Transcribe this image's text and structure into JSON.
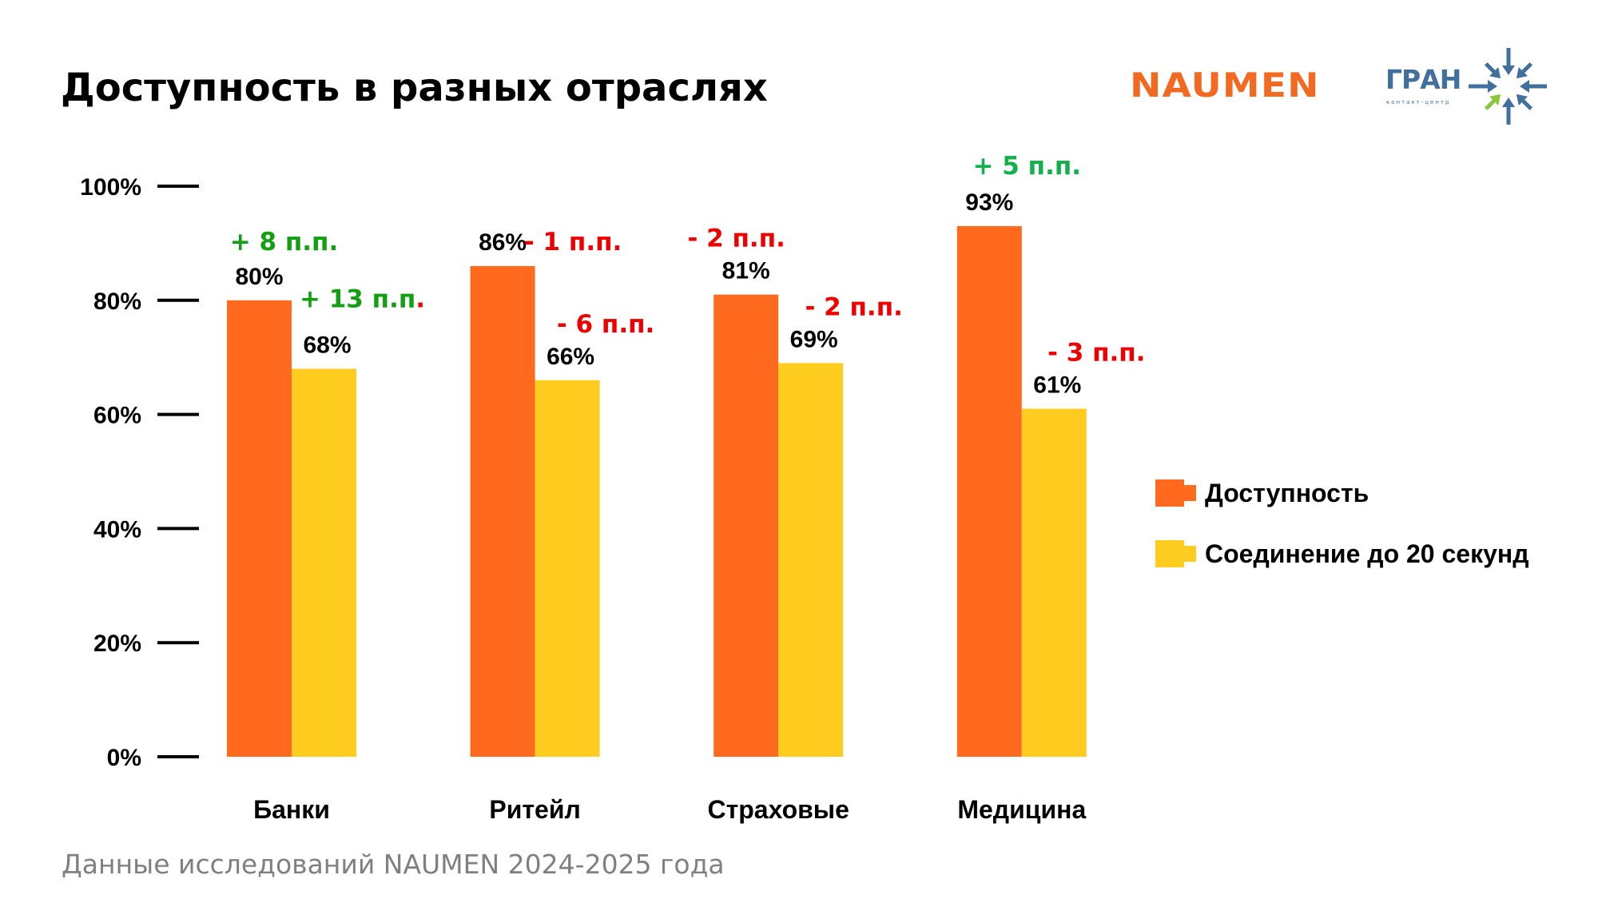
{
  "title": "Доступность в разных отраслях",
  "logos": {
    "naumen": "NAUMEN",
    "gran": "ГРАН",
    "gran_subtitle": "контакт-центр"
  },
  "colors": {
    "series_availability": "#FF6A1F",
    "series_connection": "#FFCC1F",
    "delta_positive": "#12A012",
    "delta_positive_alt": "#11B04A",
    "delta_negative": "#EE0000",
    "footnote": "#808080",
    "naumen_brand": "#F26A21",
    "gran_blue": "#41709E",
    "gran_green": "#8CC63F"
  },
  "footnote": "Данные исследований NAUMEN 2024-2025 года",
  "chart_data": {
    "type": "bar",
    "title": "Доступность в разных отраслях",
    "xlabel": "",
    "ylabel": "",
    "ylim": [
      0,
      100
    ],
    "y_ticks": [
      0,
      20,
      40,
      60,
      80,
      100
    ],
    "y_tick_labels": [
      "0%",
      "20%",
      "40%",
      "60%",
      "80%",
      "100%"
    ],
    "grid": false,
    "legend_position": "right",
    "categories": [
      "Банки",
      "Ритейл",
      "Страховые",
      "Медицина"
    ],
    "series": [
      {
        "name": "Доступность",
        "color": "#FF6A1F",
        "values": [
          80,
          86,
          81,
          93
        ],
        "value_labels": [
          "80%",
          "86%",
          "81%",
          "93%"
        ],
        "delta_labels": [
          "+ 8 п.п.",
          "- 1 п.п.",
          "- 2 п.п.",
          "+ 5 п.п."
        ],
        "delta_values": [
          8,
          -1,
          -2,
          5
        ]
      },
      {
        "name": "Соединение до 20 секунд",
        "color": "#FFCC1F",
        "values": [
          68,
          66,
          69,
          61
        ],
        "value_labels": [
          "68%",
          "66%",
          "69%",
          "61%"
        ],
        "delta_labels": [
          "+ 13 п.п.",
          "- 6 п.п.",
          "- 2 п.п.",
          "- 3 п.п."
        ],
        "delta_values": [
          13,
          -6,
          -2,
          -3
        ]
      }
    ],
    "legend": [
      "Доступность",
      "Соединение до 20 секунд"
    ]
  }
}
